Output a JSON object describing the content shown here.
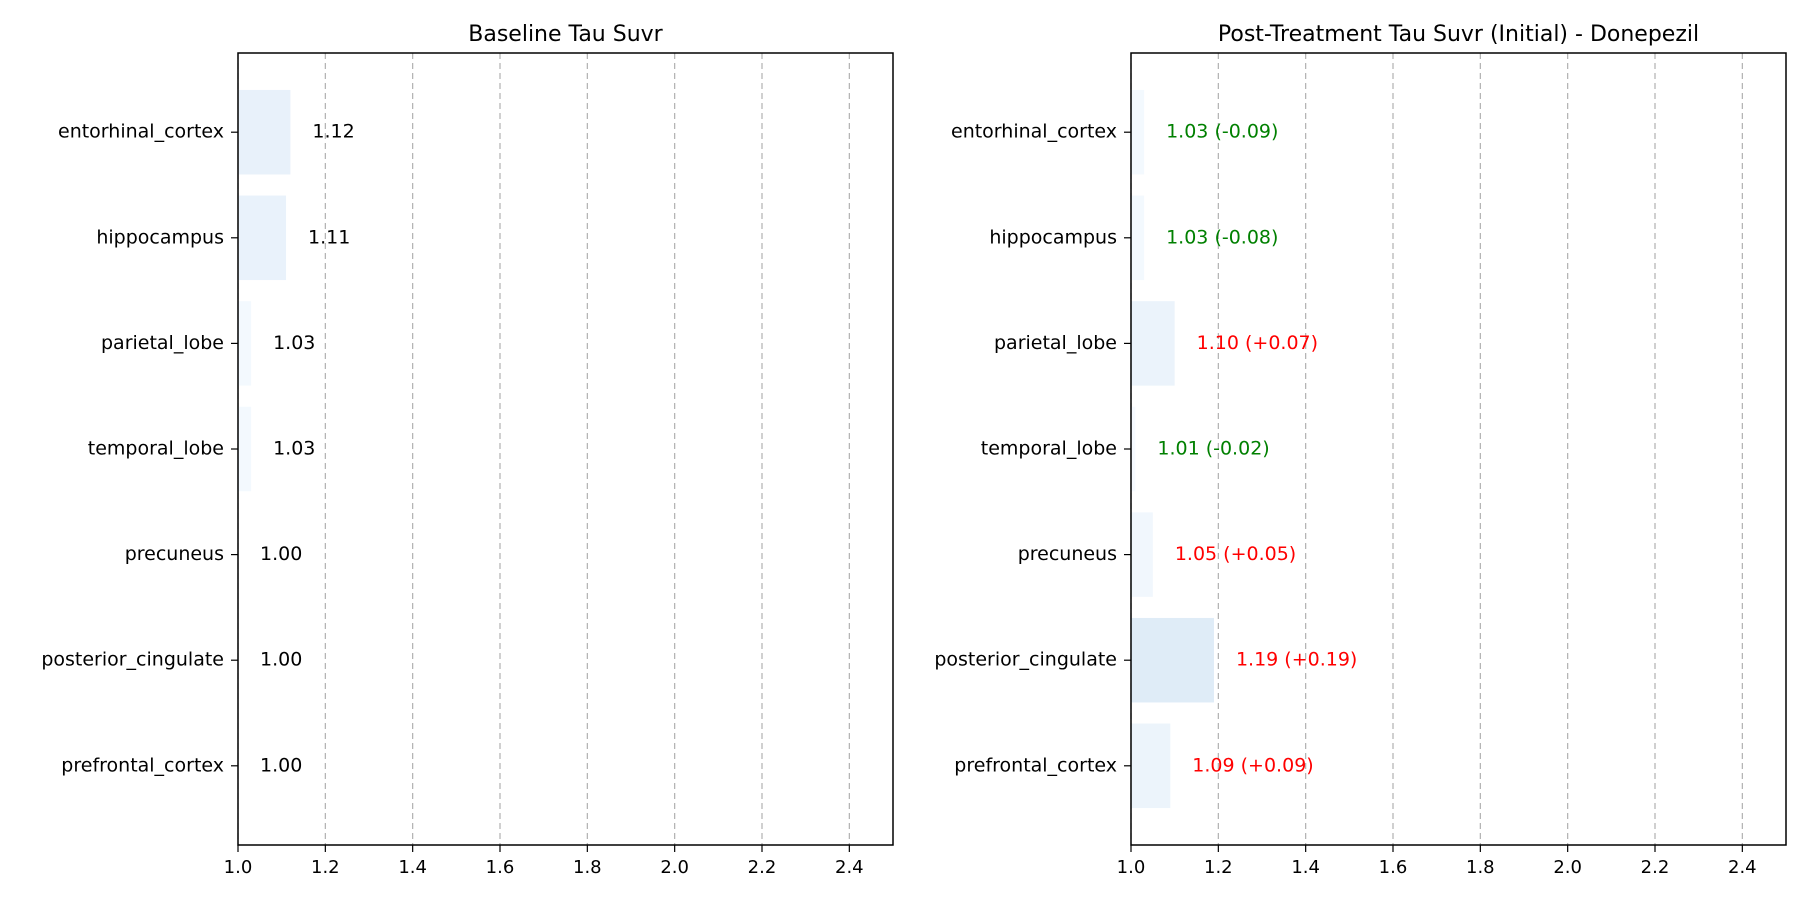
{
  "chart_data": [
    {
      "type": "bar",
      "orientation": "horizontal",
      "title": "Baseline Tau Suvr",
      "categories": [
        "entorhinal_cortex",
        "hippocampus",
        "parietal_lobe",
        "temporal_lobe",
        "precuneus",
        "posterior_cingulate",
        "prefrontal_cortex"
      ],
      "values": [
        1.12,
        1.11,
        1.03,
        1.03,
        1.0,
        1.0,
        1.0
      ],
      "labels": [
        "1.12",
        "1.11",
        "1.03",
        "1.03",
        "1.00",
        "1.00",
        "1.00"
      ],
      "label_colors": [
        "#000000",
        "#000000",
        "#000000",
        "#000000",
        "#000000",
        "#000000",
        "#000000"
      ],
      "xlim": [
        1.0,
        2.5
      ],
      "xticks": [
        "1.0",
        "1.2",
        "1.4",
        "1.6",
        "1.8",
        "2.0",
        "2.2",
        "2.4"
      ],
      "grid": "x-dashed",
      "xlabel": "",
      "ylabel": ""
    },
    {
      "type": "bar",
      "orientation": "horizontal",
      "title": "Post-Treatment Tau Suvr (Initial) - Donepezil",
      "categories": [
        "entorhinal_cortex",
        "hippocampus",
        "parietal_lobe",
        "temporal_lobe",
        "precuneus",
        "posterior_cingulate",
        "prefrontal_cortex"
      ],
      "values": [
        1.03,
        1.03,
        1.1,
        1.01,
        1.05,
        1.19,
        1.09
      ],
      "changes": [
        -0.09,
        -0.08,
        0.07,
        -0.02,
        0.05,
        0.19,
        0.09
      ],
      "labels": [
        "1.03 (-0.09)",
        "1.03 (-0.08)",
        "1.10 (+0.07)",
        "1.01 (-0.02)",
        "1.05 (+0.05)",
        "1.19 (+0.19)",
        "1.09 (+0.09)"
      ],
      "label_colors": [
        "#008000",
        "#008000",
        "#ff0000",
        "#008000",
        "#ff0000",
        "#ff0000",
        "#ff0000"
      ],
      "xlim": [
        1.0,
        2.5
      ],
      "xticks": [
        "1.0",
        "1.2",
        "1.4",
        "1.6",
        "1.8",
        "2.0",
        "2.2",
        "2.4"
      ],
      "grid": "x-dashed",
      "xlabel": "",
      "ylabel": ""
    }
  ],
  "colors": {
    "bar_light": "#f7fbff",
    "bar_dark": "#deebf7",
    "grid": "#b0b0b0",
    "decrease": "#008000",
    "increase": "#ff0000"
  }
}
